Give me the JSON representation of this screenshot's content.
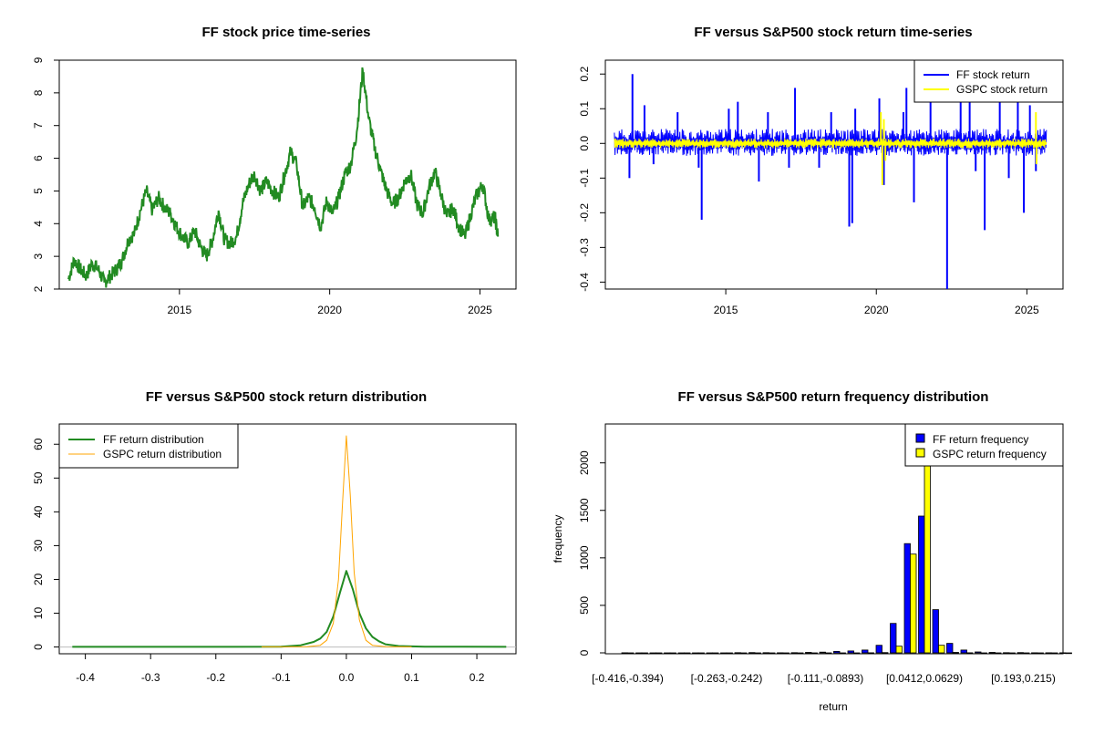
{
  "chart_data": [
    {
      "type": "line",
      "title": "FF stock price time-series",
      "xlabel": "",
      "ylabel": "",
      "xlim": [
        2011.0,
        2026.2
      ],
      "ylim": [
        2,
        9
      ],
      "xticks": [
        2015,
        2020,
        2025
      ],
      "yticks": [
        2,
        3,
        4,
        5,
        6,
        7,
        8,
        9
      ],
      "series": [
        {
          "color": "#228B22",
          "points": [
            [
              2011.3,
              2.3
            ],
            [
              2011.5,
              2.9
            ],
            [
              2011.7,
              2.6
            ],
            [
              2011.9,
              2.4
            ],
            [
              2012.1,
              2.8
            ],
            [
              2012.3,
              2.6
            ],
            [
              2012.5,
              2.2
            ],
            [
              2012.7,
              2.4
            ],
            [
              2012.9,
              2.6
            ],
            [
              2013.1,
              2.9
            ],
            [
              2013.3,
              3.5
            ],
            [
              2013.5,
              3.7
            ],
            [
              2013.7,
              4.4
            ],
            [
              2013.9,
              5.0
            ],
            [
              2014.1,
              4.4
            ],
            [
              2014.3,
              4.8
            ],
            [
              2014.5,
              4.5
            ],
            [
              2014.7,
              4.3
            ],
            [
              2014.9,
              3.9
            ],
            [
              2015.1,
              3.6
            ],
            [
              2015.3,
              3.4
            ],
            [
              2015.5,
              3.8
            ],
            [
              2015.7,
              3.3
            ],
            [
              2015.9,
              3.0
            ],
            [
              2016.1,
              3.5
            ],
            [
              2016.3,
              4.4
            ],
            [
              2016.5,
              3.5
            ],
            [
              2016.7,
              3.4
            ],
            [
              2016.9,
              3.6
            ],
            [
              2017.1,
              4.6
            ],
            [
              2017.3,
              5.2
            ],
            [
              2017.5,
              5.5
            ],
            [
              2017.7,
              5.0
            ],
            [
              2017.9,
              5.3
            ],
            [
              2018.1,
              5.0
            ],
            [
              2018.3,
              4.8
            ],
            [
              2018.5,
              5.5
            ],
            [
              2018.7,
              6.2
            ],
            [
              2018.9,
              5.8
            ],
            [
              2019.1,
              4.5
            ],
            [
              2019.3,
              4.8
            ],
            [
              2019.5,
              4.5
            ],
            [
              2019.7,
              3.9
            ],
            [
              2019.9,
              4.7
            ],
            [
              2020.1,
              4.3
            ],
            [
              2020.3,
              4.8
            ],
            [
              2020.5,
              5.5
            ],
            [
              2020.7,
              5.8
            ],
            [
              2020.9,
              6.8
            ],
            [
              2021.1,
              8.7
            ],
            [
              2021.3,
              7.2
            ],
            [
              2021.5,
              6.3
            ],
            [
              2021.7,
              5.6
            ],
            [
              2021.9,
              5.0
            ],
            [
              2022.1,
              4.6
            ],
            [
              2022.3,
              4.8
            ],
            [
              2022.5,
              5.3
            ],
            [
              2022.7,
              5.5
            ],
            [
              2022.9,
              4.6
            ],
            [
              2023.1,
              4.3
            ],
            [
              2023.3,
              5.1
            ],
            [
              2023.5,
              5.6
            ],
            [
              2023.7,
              4.9
            ],
            [
              2023.9,
              4.2
            ],
            [
              2024.1,
              4.5
            ],
            [
              2024.3,
              3.9
            ],
            [
              2024.5,
              3.6
            ],
            [
              2024.7,
              4.3
            ],
            [
              2024.9,
              4.9
            ],
            [
              2025.1,
              5.2
            ],
            [
              2025.3,
              4.1
            ],
            [
              2025.5,
              4.2
            ],
            [
              2025.6,
              3.6
            ]
          ]
        }
      ]
    },
    {
      "type": "line",
      "title": "FF versus S&P500 stock return time-series",
      "xlabel": "",
      "ylabel": "",
      "xlim": [
        2011.0,
        2026.2
      ],
      "ylim": [
        -0.42,
        0.24
      ],
      "xticks": [
        2015,
        2020,
        2025
      ],
      "yticks": [
        -0.4,
        -0.3,
        -0.2,
        -0.1,
        0.0,
        0.1,
        0.2
      ],
      "ytick_labels": [
        "-0.4",
        "-0.3",
        "-0.2",
        "-0.1",
        "0.0",
        "0.1",
        "0.2"
      ],
      "legend_position": "top-right",
      "series": [
        {
          "name": "FF stock return",
          "color": "#0000FF",
          "band": [
            0.035,
            -0.03
          ],
          "spikes": [
            [
              2011.9,
              0.2
            ],
            [
              2011.8,
              -0.1
            ],
            [
              2012.3,
              0.11
            ],
            [
              2012.6,
              -0.06
            ],
            [
              2013.4,
              0.09
            ],
            [
              2014.1,
              -0.07
            ],
            [
              2014.2,
              -0.22
            ],
            [
              2015.1,
              0.1
            ],
            [
              2015.4,
              0.12
            ],
            [
              2016.1,
              -0.11
            ],
            [
              2016.4,
              0.09
            ],
            [
              2017.1,
              -0.07
            ],
            [
              2017.3,
              0.16
            ],
            [
              2018.1,
              -0.07
            ],
            [
              2018.5,
              0.09
            ],
            [
              2019.1,
              -0.24
            ],
            [
              2019.2,
              -0.23
            ],
            [
              2019.3,
              0.1
            ],
            [
              2020.1,
              0.13
            ],
            [
              2020.25,
              -0.12
            ],
            [
              2020.9,
              0.09
            ],
            [
              2021.0,
              0.16
            ],
            [
              2021.25,
              -0.17
            ],
            [
              2021.8,
              0.12
            ],
            [
              2022.35,
              -0.42
            ],
            [
              2022.8,
              0.15
            ],
            [
              2023.1,
              0.15
            ],
            [
              2023.3,
              -0.08
            ],
            [
              2023.6,
              -0.25
            ],
            [
              2024.1,
              0.16
            ],
            [
              2024.4,
              -0.1
            ],
            [
              2024.7,
              0.15
            ],
            [
              2024.9,
              -0.2
            ],
            [
              2025.1,
              0.11
            ],
            [
              2025.3,
              -0.08
            ]
          ]
        },
        {
          "name": "GSPC stock return",
          "color": "#FFFF00",
          "band": [
            0.012,
            -0.012
          ],
          "spikes": [
            [
              2020.15,
              0.09
            ],
            [
              2020.2,
              -0.12
            ],
            [
              2020.25,
              0.07
            ],
            [
              2020.3,
              -0.05
            ],
            [
              2025.3,
              0.09
            ],
            [
              2025.32,
              -0.06
            ]
          ]
        }
      ]
    },
    {
      "type": "line",
      "title": "FF versus S&P500 stock return distribution",
      "xlabel": "",
      "ylabel": "",
      "xlim": [
        -0.44,
        0.26
      ],
      "ylim": [
        -2,
        66
      ],
      "xticks": [
        -0.4,
        -0.3,
        -0.2,
        -0.1,
        0.0,
        0.1,
        0.2
      ],
      "xtick_labels": [
        "-0.4",
        "-0.3",
        "-0.2",
        "-0.1",
        "0.0",
        "0.1",
        "0.2"
      ],
      "yticks": [
        0,
        10,
        20,
        30,
        40,
        50,
        60
      ],
      "legend_position": "top-left",
      "series": [
        {
          "name": "FF return distribution",
          "color": "#228B22",
          "points": [
            [
              -0.42,
              0.05
            ],
            [
              -0.2,
              0.05
            ],
            [
              -0.1,
              0.1
            ],
            [
              -0.07,
              0.5
            ],
            [
              -0.05,
              1.5
            ],
            [
              -0.04,
              2.5
            ],
            [
              -0.03,
              4.5
            ],
            [
              -0.02,
              9.0
            ],
            [
              -0.01,
              16.0
            ],
            [
              0.0,
              22.5
            ],
            [
              0.01,
              17.0
            ],
            [
              0.02,
              10.0
            ],
            [
              0.03,
              5.5
            ],
            [
              0.04,
              3.0
            ],
            [
              0.05,
              1.7
            ],
            [
              0.06,
              0.8
            ],
            [
              0.08,
              0.3
            ],
            [
              0.12,
              0.1
            ],
            [
              0.245,
              0.05
            ]
          ]
        },
        {
          "name": "GSPC return distribution",
          "color": "#FFA500",
          "points": [
            [
              -0.13,
              0.05
            ],
            [
              -0.06,
              0.1
            ],
            [
              -0.04,
              0.5
            ],
            [
              -0.03,
              2.0
            ],
            [
              -0.02,
              7.0
            ],
            [
              -0.012,
              20.0
            ],
            [
              -0.006,
              42.0
            ],
            [
              0.0,
              62.5
            ],
            [
              0.006,
              45.0
            ],
            [
              0.012,
              22.0
            ],
            [
              0.02,
              8.0
            ],
            [
              0.03,
              2.0
            ],
            [
              0.04,
              0.5
            ],
            [
              0.06,
              0.1
            ],
            [
              0.1,
              0.05
            ]
          ]
        }
      ]
    },
    {
      "type": "bar",
      "title": "FF versus S&P500 return frequency distribution",
      "xlabel": "return",
      "ylabel": "frequency",
      "ylim": [
        0,
        2400
      ],
      "yticks": [
        0,
        500,
        1000,
        1500,
        2000
      ],
      "legend_position": "top-right",
      "shown_category_labels": [
        "[-0.416,-0.394)",
        "[-0.263,-0.242)",
        "[-0.111,-0.0893)",
        "[0.0412,0.0629)",
        "[0.193,0.215)"
      ],
      "shown_category_indices": [
        0,
        7,
        14,
        21,
        28
      ],
      "series": [
        {
          "name": "FF return frequency",
          "color": "#0000FF",
          "values": [
            1,
            0,
            0,
            0,
            0,
            0,
            0,
            0,
            2,
            3,
            2,
            1,
            2,
            5,
            8,
            15,
            20,
            30,
            80,
            310,
            1150,
            1440,
            455,
            100,
            30,
            10,
            5,
            2,
            3,
            1,
            1,
            1
          ]
        },
        {
          "name": "GSPC return frequency",
          "color": "#FFFF00",
          "values": [
            0,
            0,
            0,
            0,
            0,
            0,
            0,
            0,
            0,
            0,
            0,
            0,
            0,
            0,
            0,
            0,
            0,
            1,
            3,
            70,
            1040,
            2400,
            80,
            5,
            1,
            0,
            0,
            0,
            0,
            0,
            0,
            0
          ]
        }
      ]
    }
  ]
}
